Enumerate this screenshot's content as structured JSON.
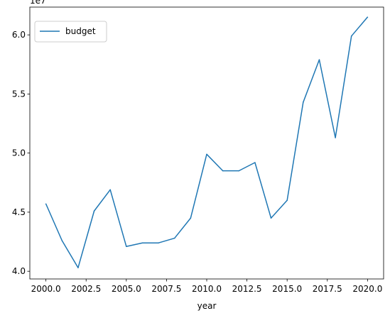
{
  "chart_data": {
    "type": "line",
    "xlabel": "year",
    "ylabel": "",
    "offset_label": "1e7",
    "xlim": [
      1999.0,
      2021.0
    ],
    "ylim": [
      3.935,
      6.235
    ],
    "x_ticks": [
      2000.0,
      2002.5,
      2005.0,
      2007.5,
      2010.0,
      2012.5,
      2015.0,
      2017.5,
      2020.0
    ],
    "x_tick_labels": [
      "2000.0",
      "2002.5",
      "2005.0",
      "2007.5",
      "2010.0",
      "2012.5",
      "2015.0",
      "2017.5",
      "2020.0"
    ],
    "y_ticks": [
      4.0,
      4.5,
      5.0,
      5.5,
      6.0
    ],
    "y_tick_labels": [
      "4.0",
      "4.5",
      "5.0",
      "5.5",
      "6.0"
    ],
    "grid": false,
    "legend_position": "top-left",
    "x": [
      2000,
      2001,
      2002,
      2003,
      2004,
      2005,
      2006,
      2007,
      2008,
      2009,
      2010,
      2011,
      2012,
      2013,
      2014,
      2015,
      2016,
      2017,
      2018,
      2019,
      2020
    ],
    "series": [
      {
        "name": "budget",
        "color": "#1f77b4",
        "values": [
          4.57,
          4.26,
          4.03,
          4.51,
          4.69,
          4.21,
          4.24,
          4.24,
          4.28,
          4.45,
          4.99,
          4.85,
          4.85,
          4.92,
          4.45,
          4.6,
          5.43,
          5.79,
          5.13,
          5.99,
          6.15
        ]
      }
    ]
  }
}
